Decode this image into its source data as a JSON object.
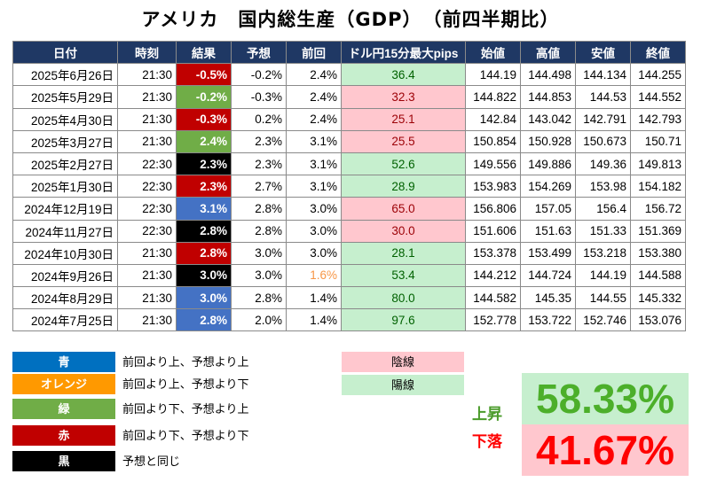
{
  "title": "アメリカ　国内総生産（GDP）　（前四半期比）",
  "table": {
    "headers": [
      "日付",
      "時刻",
      "結果",
      "予想",
      "前回",
      "ドル円15分最大pips",
      "始値",
      "高値",
      "安値",
      "終値"
    ],
    "rows": [
      {
        "date": "2025年6月26日",
        "time": "21:30",
        "result": "-0.5%",
        "result_color": "red",
        "forecast": "-0.2%",
        "previous": "2.4%",
        "prev_color": "",
        "pips": "36.4",
        "pips_color": "green",
        "open": "144.19",
        "high": "144.498",
        "low": "144.134",
        "close": "144.255"
      },
      {
        "date": "2025年5月29日",
        "time": "21:30",
        "result": "-0.2%",
        "result_color": "green",
        "forecast": "-0.3%",
        "previous": "2.4%",
        "prev_color": "",
        "pips": "32.3",
        "pips_color": "pink",
        "open": "144.822",
        "high": "144.853",
        "low": "144.53",
        "close": "144.552"
      },
      {
        "date": "2025年4月30日",
        "time": "21:30",
        "result": "-0.3%",
        "result_color": "red",
        "forecast": "0.2%",
        "previous": "2.4%",
        "prev_color": "",
        "pips": "25.1",
        "pips_color": "pink",
        "open": "142.84",
        "high": "143.042",
        "low": "142.791",
        "close": "142.793"
      },
      {
        "date": "2025年3月27日",
        "time": "21:30",
        "result": "2.4%",
        "result_color": "green",
        "forecast": "2.3%",
        "previous": "3.1%",
        "prev_color": "",
        "pips": "25.5",
        "pips_color": "pink",
        "open": "150.854",
        "high": "150.928",
        "low": "150.673",
        "close": "150.71"
      },
      {
        "date": "2025年2月27日",
        "time": "22:30",
        "result": "2.3%",
        "result_color": "black",
        "forecast": "2.3%",
        "previous": "3.1%",
        "prev_color": "",
        "pips": "52.6",
        "pips_color": "green",
        "open": "149.556",
        "high": "149.886",
        "low": "149.36",
        "close": "149.813"
      },
      {
        "date": "2025年1月30日",
        "time": "22:30",
        "result": "2.3%",
        "result_color": "red",
        "forecast": "2.7%",
        "previous": "3.1%",
        "prev_color": "",
        "pips": "28.9",
        "pips_color": "green",
        "open": "153.983",
        "high": "154.269",
        "low": "153.98",
        "close": "154.182"
      },
      {
        "date": "2024年12月19日",
        "time": "22:30",
        "result": "3.1%",
        "result_color": "blue",
        "forecast": "2.8%",
        "previous": "3.0%",
        "prev_color": "",
        "pips": "65.0",
        "pips_color": "pink",
        "open": "156.806",
        "high": "157.05",
        "low": "156.4",
        "close": "156.72"
      },
      {
        "date": "2024年11月27日",
        "time": "22:30",
        "result": "2.8%",
        "result_color": "black",
        "forecast": "2.8%",
        "previous": "3.0%",
        "prev_color": "",
        "pips": "30.0",
        "pips_color": "pink",
        "open": "151.606",
        "high": "151.63",
        "low": "151.33",
        "close": "151.369"
      },
      {
        "date": "2024年10月30日",
        "time": "21:30",
        "result": "2.8%",
        "result_color": "red",
        "forecast": "3.0%",
        "previous": "3.0%",
        "prev_color": "",
        "pips": "28.1",
        "pips_color": "green",
        "open": "153.378",
        "high": "153.499",
        "low": "153.218",
        "close": "153.380"
      },
      {
        "date": "2024年9月26日",
        "time": "21:30",
        "result": "3.0%",
        "result_color": "black",
        "forecast": "3.0%",
        "previous": "1.6%",
        "prev_color": "orange",
        "pips": "53.4",
        "pips_color": "green",
        "open": "144.212",
        "high": "144.724",
        "low": "144.19",
        "close": "144.588"
      },
      {
        "date": "2024年8月29日",
        "time": "21:30",
        "result": "3.0%",
        "result_color": "blue",
        "forecast": "2.8%",
        "previous": "1.4%",
        "prev_color": "",
        "pips": "80.0",
        "pips_color": "green",
        "open": "144.582",
        "high": "145.35",
        "low": "144.55",
        "close": "145.332"
      },
      {
        "date": "2024年7月25日",
        "time": "21:30",
        "result": "2.8%",
        "result_color": "blue",
        "forecast": "2.0%",
        "previous": "1.4%",
        "prev_color": "",
        "pips": "97.6",
        "pips_color": "green",
        "open": "152.778",
        "high": "153.722",
        "low": "152.746",
        "close": "153.076"
      }
    ]
  },
  "legend": [
    {
      "label": "青",
      "desc": "前回より上、予想より上",
      "color": "blue"
    },
    {
      "label": "オレンジ",
      "desc": "前回より上、予想より下",
      "color": "orange"
    },
    {
      "label": "緑",
      "desc": "前回より下、予想より上",
      "color": "green"
    },
    {
      "label": "赤",
      "desc": "前回より下、予想より下",
      "color": "red"
    },
    {
      "label": "黒",
      "desc": "予想と同じ",
      "color": "black"
    }
  ],
  "candles": {
    "bearish": "陰線",
    "bullish": "陽線"
  },
  "stats": {
    "up_label": "上昇",
    "up_value": "58.33%",
    "down_label": "下落",
    "down_value": "41.67%"
  },
  "colors": {
    "header_bg": "#1f3864",
    "blue": "#4472c4",
    "green": "#70ad47",
    "red": "#c00000",
    "black": "#000000",
    "orange": "#ff9900",
    "pink_fill": "#ffc7ce",
    "green_fill": "#c6efce"
  }
}
